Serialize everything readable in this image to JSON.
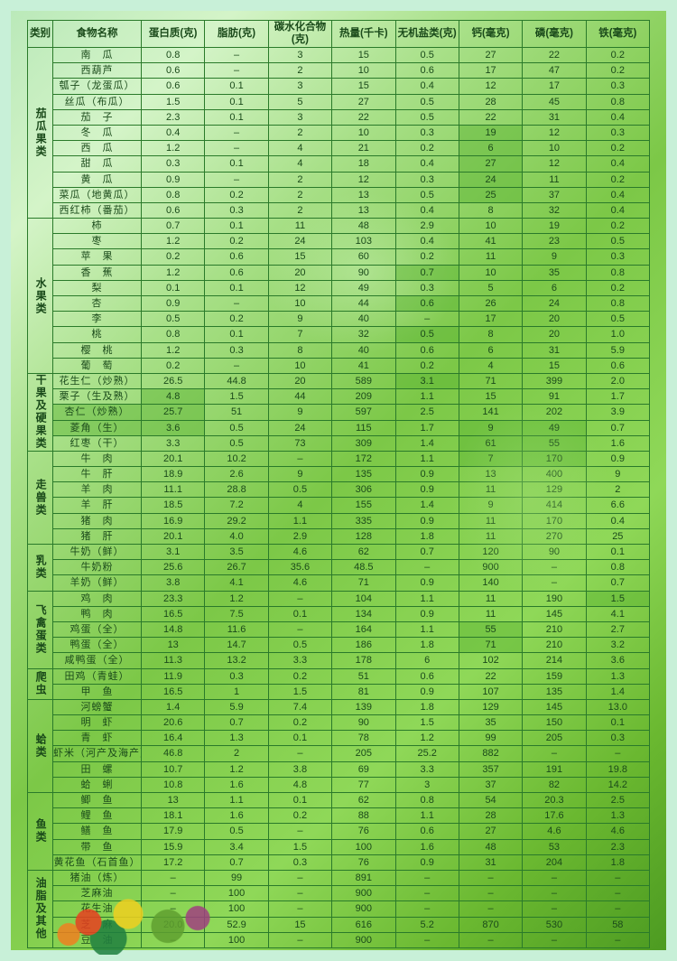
{
  "headers": [
    "类别",
    "食物名称",
    "蛋白质(克)",
    "脂肪(克)",
    "碳水化合物(克)",
    "热量(千卡)",
    "无机盐类(克)",
    "钙(毫克)",
    "磷(毫克)",
    "铁(毫克)"
  ],
  "groups": [
    {
      "cat": "茄瓜果类",
      "rows": [
        {
          "n": "南　瓜",
          "v": [
            "0.8",
            "–",
            "3",
            "15",
            "0.5",
            "27",
            "22",
            "0.2"
          ]
        },
        {
          "n": "西葫芦",
          "v": [
            "0.6",
            "–",
            "2",
            "10",
            "0.6",
            "17",
            "47",
            "0.2"
          ]
        },
        {
          "n": "瓠子（龙蛋瓜）",
          "v": [
            "0.6",
            "0.1",
            "3",
            "15",
            "0.4",
            "12",
            "17",
            "0.3"
          ]
        },
        {
          "n": "丝瓜（布瓜）",
          "v": [
            "1.5",
            "0.1",
            "5",
            "27",
            "0.5",
            "28",
            "45",
            "0.8"
          ]
        },
        {
          "n": "茄　子",
          "v": [
            "2.3",
            "0.1",
            "3",
            "22",
            "0.5",
            "22",
            "31",
            "0.4"
          ]
        },
        {
          "n": "冬　瓜",
          "v": [
            "0.4",
            "–",
            "2",
            "10",
            "0.3",
            "19",
            "12",
            "0.3"
          ],
          "hl": [
            6
          ]
        },
        {
          "n": "西　瓜",
          "v": [
            "1.2",
            "–",
            "4",
            "21",
            "0.2",
            "6",
            "10",
            "0.2"
          ],
          "hl": [
            6
          ]
        },
        {
          "n": "甜　瓜",
          "v": [
            "0.3",
            "0.1",
            "4",
            "18",
            "0.4",
            "27",
            "12",
            "0.4"
          ],
          "hl": [
            6
          ]
        },
        {
          "n": "黄　瓜",
          "v": [
            "0.9",
            "–",
            "2",
            "12",
            "0.3",
            "24",
            "11",
            "0.2"
          ],
          "hl": [
            6
          ]
        },
        {
          "n": "菜瓜（地黄瓜）",
          "v": [
            "0.8",
            "0.2",
            "2",
            "13",
            "0.5",
            "25",
            "37",
            "0.4"
          ],
          "hl": [
            6
          ]
        },
        {
          "n": "西红柿（番茄）",
          "v": [
            "0.6",
            "0.3",
            "2",
            "13",
            "0.4",
            "8",
            "32",
            "0.4"
          ]
        }
      ]
    },
    {
      "cat": "水果类",
      "rows": [
        {
          "n": "柿",
          "v": [
            "0.7",
            "0.1",
            "11",
            "48",
            "2.9",
            "10",
            "19",
            "0.2"
          ]
        },
        {
          "n": "枣",
          "v": [
            "1.2",
            "0.2",
            "24",
            "103",
            "0.4",
            "41",
            "23",
            "0.5"
          ]
        },
        {
          "n": "苹　果",
          "v": [
            "0.2",
            "0.6",
            "15",
            "60",
            "0.2",
            "11",
            "9",
            "0.3"
          ]
        },
        {
          "n": "香　蕉",
          "v": [
            "1.2",
            "0.6",
            "20",
            "90",
            "0.7",
            "10",
            "35",
            "0.8"
          ],
          "hl": [
            5
          ]
        },
        {
          "n": "梨",
          "v": [
            "0.1",
            "0.1",
            "12",
            "49",
            "0.3",
            "5",
            "6",
            "0.2"
          ]
        },
        {
          "n": "杏",
          "v": [
            "0.9",
            "–",
            "10",
            "44",
            "0.6",
            "26",
            "24",
            "0.8"
          ],
          "hl": [
            5
          ]
        },
        {
          "n": "李",
          "v": [
            "0.5",
            "0.2",
            "9",
            "40",
            "–",
            "17",
            "20",
            "0.5"
          ]
        },
        {
          "n": "桃",
          "v": [
            "0.8",
            "0.1",
            "7",
            "32",
            "0.5",
            "8",
            "20",
            "1.0"
          ],
          "hl": [
            5
          ]
        },
        {
          "n": "樱　桃",
          "v": [
            "1.2",
            "0.3",
            "8",
            "40",
            "0.6",
            "6",
            "31",
            "5.9"
          ]
        },
        {
          "n": "葡　萄",
          "v": [
            "0.2",
            "–",
            "10",
            "41",
            "0.2",
            "4",
            "15",
            "0.6"
          ]
        }
      ]
    },
    {
      "cat": "干果及硬果类",
      "rows": [
        {
          "n": "花生仁（炒熟）",
          "v": [
            "26.5",
            "44.8",
            "20",
            "589",
            "3.1",
            "71",
            "399",
            "2.0"
          ],
          "hl": [
            5
          ]
        },
        {
          "n": "栗子（生及熟）",
          "v": [
            "4.8",
            "1.5",
            "44",
            "209",
            "1.1",
            "15",
            "91",
            "1.7"
          ],
          "hl": [
            1
          ]
        },
        {
          "n": "杏仁（炒熟）",
          "v": [
            "25.7",
            "51",
            "9",
            "597",
            "2.5",
            "141",
            "202",
            "3.9"
          ],
          "hl": [
            0,
            1
          ]
        },
        {
          "n": "菱角（生）",
          "v": [
            "3.6",
            "0.5",
            "24",
            "115",
            "1.7",
            "9",
            "49",
            "0.7"
          ],
          "hl": [
            0,
            1,
            6,
            7
          ]
        },
        {
          "n": "红枣（干）",
          "v": [
            "3.3",
            "0.5",
            "73",
            "309",
            "1.4",
            "61",
            "55",
            "1.6"
          ],
          "hl": [
            6,
            7
          ]
        }
      ]
    },
    {
      "cat": "走兽类",
      "rows": [
        {
          "n": "牛　肉",
          "v": [
            "20.1",
            "10.2",
            "–",
            "172",
            "1.1",
            "7",
            "170",
            "0.9"
          ],
          "hl": [
            6,
            7
          ]
        },
        {
          "n": "牛　肝",
          "v": [
            "18.9",
            "2.6",
            "9",
            "135",
            "0.9",
            "13",
            "400",
            "9"
          ]
        },
        {
          "n": "羊　肉",
          "v": [
            "11.1",
            "28.8",
            "0.5",
            "306",
            "0.9",
            "11",
            "129",
            "2"
          ]
        },
        {
          "n": "羊　肝",
          "v": [
            "18.5",
            "7.2",
            "4",
            "155",
            "1.4",
            "9",
            "414",
            "6.6"
          ]
        },
        {
          "n": "猪　肉",
          "v": [
            "16.9",
            "29.2",
            "1.1",
            "335",
            "0.9",
            "11",
            "170",
            "0.4"
          ]
        },
        {
          "n": "猪　肝",
          "v": [
            "20.1",
            "4.0",
            "2.9",
            "128",
            "1.8",
            "11",
            "270",
            "25"
          ]
        }
      ]
    },
    {
      "cat": "乳类",
      "rows": [
        {
          "n": "牛奶（鲜）",
          "v": [
            "3.1",
            "3.5",
            "4.6",
            "62",
            "0.7",
            "120",
            "90",
            "0.1"
          ]
        },
        {
          "n": "牛奶粉",
          "v": [
            "25.6",
            "26.7",
            "35.6",
            "48.5",
            "–",
            "900",
            "–",
            "0.8"
          ]
        },
        {
          "n": "羊奶（鲜）",
          "v": [
            "3.8",
            "4.1",
            "4.6",
            "71",
            "0.9",
            "140",
            "–",
            "0.7"
          ]
        }
      ]
    },
    {
      "cat": "飞禽蛋类",
      "rows": [
        {
          "n": "鸡　肉",
          "v": [
            "23.3",
            "1.2",
            "–",
            "104",
            "1.1",
            "11",
            "190",
            "1.5"
          ],
          "hl": [
            8
          ]
        },
        {
          "n": "鸭　肉",
          "v": [
            "16.5",
            "7.5",
            "0.1",
            "134",
            "0.9",
            "11",
            "145",
            "4.1"
          ]
        },
        {
          "n": "鸡蛋（全）",
          "v": [
            "14.8",
            "11.6",
            "–",
            "164",
            "1.1",
            "55",
            "210",
            "2.7"
          ],
          "hl": [
            6
          ]
        },
        {
          "n": "鸭蛋（全）",
          "v": [
            "13",
            "14.7",
            "0.5",
            "186",
            "1.8",
            "71",
            "210",
            "3.2"
          ],
          "hl": [
            6
          ]
        },
        {
          "n": "咸鸭蛋（全）",
          "v": [
            "11.3",
            "13.2",
            "3.3",
            "178",
            "6",
            "102",
            "214",
            "3.6"
          ]
        }
      ]
    },
    {
      "cat": "爬虫",
      "rows": [
        {
          "n": "田鸡（青蛙）",
          "v": [
            "11.9",
            "0.3",
            "0.2",
            "51",
            "0.6",
            "22",
            "159",
            "1.3"
          ]
        },
        {
          "n": "甲　鱼",
          "v": [
            "16.5",
            "1",
            "1.5",
            "81",
            "0.9",
            "107",
            "135",
            "1.4"
          ]
        }
      ]
    },
    {
      "cat": "蛤类",
      "rows": [
        {
          "n": "河螃蟹",
          "v": [
            "1.4",
            "5.9",
            "7.4",
            "139",
            "1.8",
            "129",
            "145",
            "13.0"
          ]
        },
        {
          "n": "明　虾",
          "v": [
            "20.6",
            "0.7",
            "0.2",
            "90",
            "1.5",
            "35",
            "150",
            "0.1"
          ]
        },
        {
          "n": "青　虾",
          "v": [
            "16.4",
            "1.3",
            "0.1",
            "78",
            "1.2",
            "99",
            "205",
            "0.3"
          ]
        },
        {
          "n": "虾米（河产及海产）",
          "v": [
            "46.8",
            "2",
            "–",
            "205",
            "25.2",
            "882",
            "–",
            "–"
          ]
        },
        {
          "n": "田　螺",
          "v": [
            "10.7",
            "1.2",
            "3.8",
            "69",
            "3.3",
            "357",
            "191",
            "19.8"
          ]
        },
        {
          "n": "蛤　蜊",
          "v": [
            "10.8",
            "1.6",
            "4.8",
            "77",
            "3",
            "37",
            "82",
            "14.2"
          ]
        }
      ]
    },
    {
      "cat": "鱼类",
      "rows": [
        {
          "n": "鲫　鱼",
          "v": [
            "13",
            "1.1",
            "0.1",
            "62",
            "0.8",
            "54",
            "20.3",
            "2.5"
          ]
        },
        {
          "n": "鲤　鱼",
          "v": [
            "18.1",
            "1.6",
            "0.2",
            "88",
            "1.1",
            "28",
            "17.6",
            "1.3"
          ]
        },
        {
          "n": "鳝　鱼",
          "v": [
            "17.9",
            "0.5",
            "–",
            "76",
            "0.6",
            "27",
            "4.6",
            "4.6"
          ]
        },
        {
          "n": "带　鱼",
          "v": [
            "15.9",
            "3.4",
            "1.5",
            "100",
            "1.6",
            "48",
            "53",
            "2.3"
          ]
        },
        {
          "n": "黄花鱼（石首鱼）",
          "v": [
            "17.2",
            "0.7",
            "0.3",
            "76",
            "0.9",
            "31",
            "204",
            "1.8"
          ]
        }
      ]
    },
    {
      "cat": "油脂及其他",
      "rows": [
        {
          "n": "猪油（炼）",
          "v": [
            "–",
            "99",
            "–",
            "891",
            "–",
            "–",
            "–",
            "–"
          ]
        },
        {
          "n": "芝麻油",
          "v": [
            "–",
            "100",
            "–",
            "900",
            "–",
            "–",
            "–",
            "–"
          ]
        },
        {
          "n": "花生油",
          "v": [
            "–",
            "100",
            "–",
            "900",
            "–",
            "–",
            "–",
            "–"
          ]
        },
        {
          "n": "芝　麻",
          "v": [
            "20.0",
            "52.9",
            "15",
            "616",
            "5.2",
            "870",
            "530",
            "58"
          ]
        },
        {
          "n": "豆　油",
          "v": [
            "–",
            "100",
            "–",
            "900",
            "–",
            "–",
            "–",
            "–"
          ]
        }
      ]
    }
  ],
  "colors": {
    "border": "#2a7a2a",
    "text": "#1a4a1a",
    "highlight": "rgba(90,180,50,0.45)"
  }
}
